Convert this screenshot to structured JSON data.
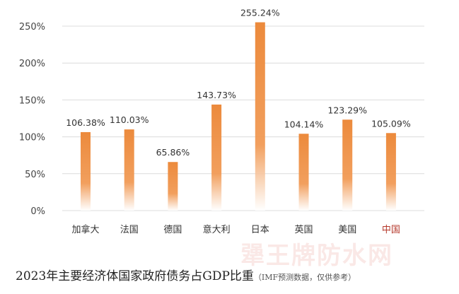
{
  "chart_data": {
    "type": "bar",
    "categories": [
      "加拿大",
      "法国",
      "德国",
      "意大利",
      "日本",
      "英国",
      "美国",
      "中国"
    ],
    "values": [
      106.38,
      110.03,
      65.86,
      143.73,
      255.24,
      104.14,
      123.29,
      105.09
    ],
    "value_labels": [
      "106.38%",
      "110.03%",
      "65.86%",
      "143.73%",
      "255.24%",
      "104.14%",
      "123.29%",
      "105.09%"
    ],
    "highlight_category": "中国",
    "ylim": [
      0,
      250
    ],
    "yticks": [
      0,
      50,
      100,
      150,
      200,
      250
    ],
    "ytick_labels": [
      "0%",
      "50%",
      "100%",
      "150%",
      "200%",
      "250%"
    ],
    "grid": true,
    "title": "2023年主要经济体国家政府债务占GDP比重",
    "subtitle": "（IMF预测数据，仅供参考）"
  },
  "colors": {
    "bar": "#ec8a3c",
    "bar_fade": "#ffffff",
    "highlight_label": "#b5382b",
    "grid": "#dcdcdc"
  },
  "watermark": "犟王牌防水网"
}
